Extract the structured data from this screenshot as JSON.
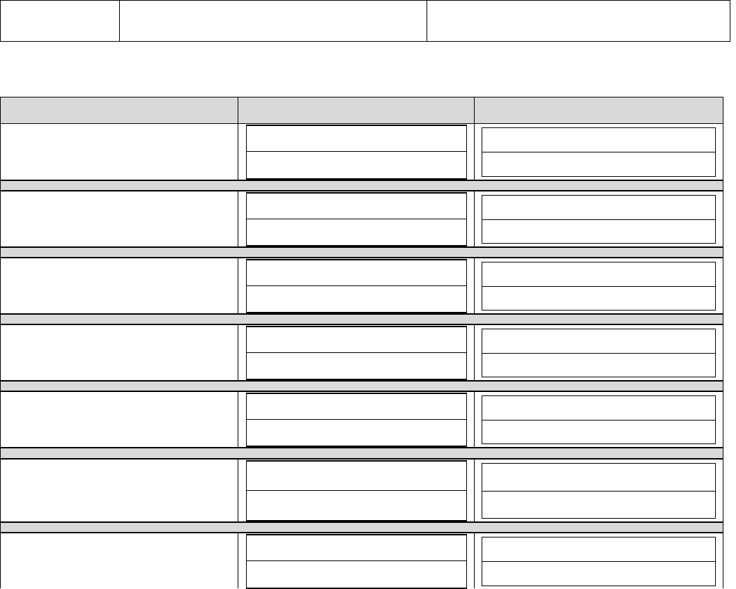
{
  "colors": {
    "header_fill": "#d9d9d9",
    "separator_fill": "#d9d9d9",
    "border": "#000000"
  },
  "top_table": {
    "cells": [
      "",
      "",
      ""
    ]
  },
  "main_table": {
    "headers": [
      "",
      "",
      ""
    ],
    "groups": [
      {
        "label": "",
        "col2": [
          "",
          ""
        ],
        "col3": [
          "",
          ""
        ]
      },
      {
        "label": "",
        "col2": [
          "",
          ""
        ],
        "col3": [
          "",
          ""
        ]
      },
      {
        "label": "",
        "col2": [
          "",
          ""
        ],
        "col3": [
          "",
          ""
        ]
      },
      {
        "label": "",
        "col2": [
          "",
          ""
        ],
        "col3": [
          "",
          ""
        ]
      },
      {
        "label": "",
        "col2": [
          "",
          ""
        ],
        "col3": [
          "",
          ""
        ]
      },
      {
        "label": "",
        "col2": [
          "",
          ""
        ],
        "col3": [
          "",
          ""
        ]
      },
      {
        "label": "",
        "col2": [
          "",
          ""
        ],
        "col3": [
          "",
          ""
        ]
      }
    ]
  }
}
